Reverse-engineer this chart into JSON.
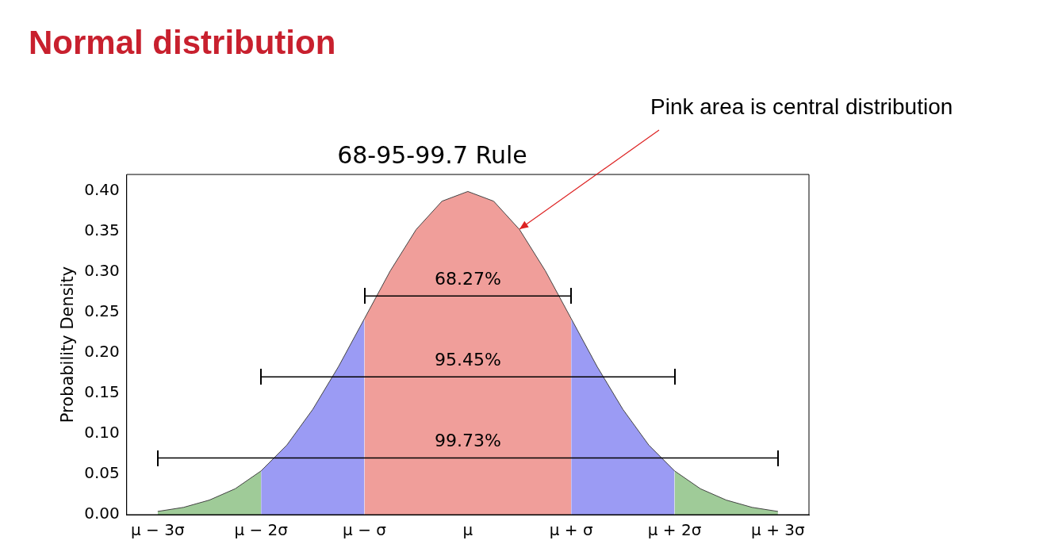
{
  "chart_data": {
    "type": "area",
    "title": "Normal distribution",
    "subtitle": "68-95-99.7 Rule",
    "ylabel": "Probability Density",
    "series": [
      {
        "color": "#9fcb98",
        "x": [
          -3,
          -2.75,
          -2.5,
          -2.25,
          -2,
          0,
          2,
          2.25,
          2.5,
          2.75,
          3
        ],
        "values": [
          0.004,
          0.009,
          0.018,
          0.032,
          0.054,
          null,
          0.054,
          0.032,
          0.018,
          0.009,
          0.004
        ]
      },
      {
        "color": "#9b9bf4",
        "x": [
          -2,
          -1.75,
          -1.5,
          -1.25,
          -1,
          0,
          1,
          1.25,
          1.5,
          1.75,
          2
        ],
        "values": [
          0.054,
          0.086,
          0.13,
          0.183,
          0.242,
          null,
          0.242,
          0.183,
          0.13,
          0.086,
          0.054
        ]
      },
      {
        "color": "#f09e9a",
        "x": [
          -1,
          -0.75,
          -0.5,
          -0.25,
          0,
          0.25,
          0.5,
          0.75,
          1
        ],
        "values": [
          0.242,
          0.301,
          0.352,
          0.387,
          0.399,
          0.387,
          0.352,
          0.301,
          0.242
        ]
      },
      {
        "type": "line",
        "color": "#000000",
        "x": [
          -1,
          1
        ],
        "values": [
          0.27,
          0.27
        ]
      },
      {
        "type": "line",
        "color": "#000000",
        "x": [
          -2,
          2
        ],
        "values": [
          0.17,
          0.17
        ]
      },
      {
        "type": "line",
        "color": "#000000",
        "x": [
          -3,
          3
        ],
        "values": [
          0.07,
          0.07
        ]
      }
    ],
    "xlim": [
      -3.3,
      3.3
    ],
    "xticks": [
      {
        "value": -3,
        "label": "μ − 3σ"
      },
      {
        "value": -2,
        "label": "μ − 2σ"
      },
      {
        "value": -1,
        "label": "μ − σ"
      },
      {
        "value": 0,
        "label": "μ"
      },
      {
        "value": 1,
        "label": "μ + σ"
      },
      {
        "value": 2,
        "label": "μ + 2σ"
      },
      {
        "value": 3,
        "label": "μ + 3σ"
      }
    ],
    "ylim": [
      0,
      0.42
    ],
    "yticks": [
      {
        "value": 0,
        "label": "0.00"
      },
      {
        "value": 0.05,
        "label": "0.05"
      },
      {
        "value": 0.1,
        "label": "0.10"
      },
      {
        "value": 0.15,
        "label": "0.15"
      },
      {
        "value": 0.2,
        "label": "0.20"
      },
      {
        "value": 0.25,
        "label": "0.25"
      },
      {
        "value": 0.3,
        "label": "0.30"
      },
      {
        "value": 0.35,
        "label": "0.35"
      },
      {
        "value": 0.4,
        "label": "0.40"
      }
    ],
    "grid": false,
    "legend": false,
    "annotations": [
      "68.27%",
      "95.45%",
      "99.73%",
      {
        "text": "Pink area is central distribution",
        "x": 0.5,
        "y": 0.352
      }
    ]
  }
}
